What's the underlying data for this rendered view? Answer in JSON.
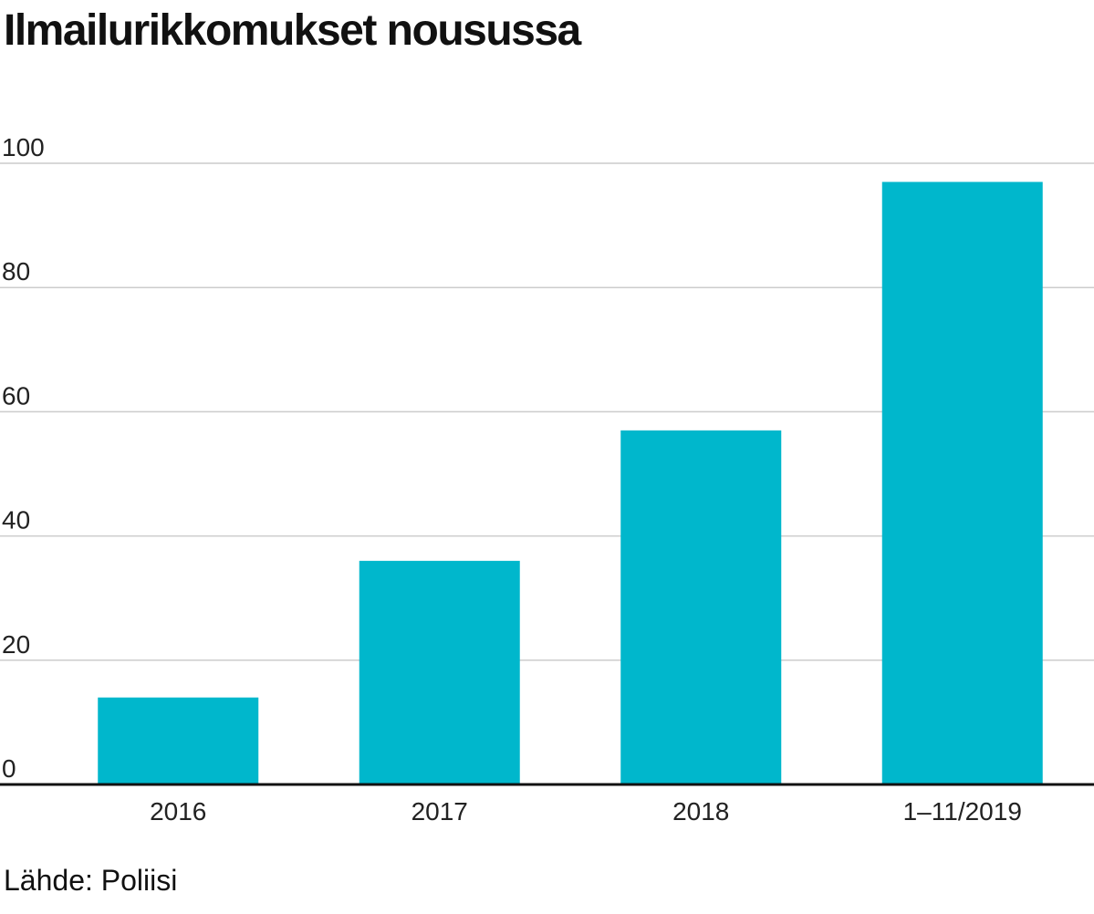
{
  "chart_data": {
    "type": "bar",
    "title": "Ilmailurikkomukset nousussa",
    "categories": [
      "2016",
      "2017",
      "2018",
      "1–11/2019"
    ],
    "values": [
      14,
      36,
      57,
      97
    ],
    "ylim": [
      0,
      100
    ],
    "yticks": [
      0,
      20,
      40,
      60,
      80,
      100
    ],
    "grid": true,
    "bar_color": "#00b7cc",
    "source": "Lähde: Poliisi"
  }
}
